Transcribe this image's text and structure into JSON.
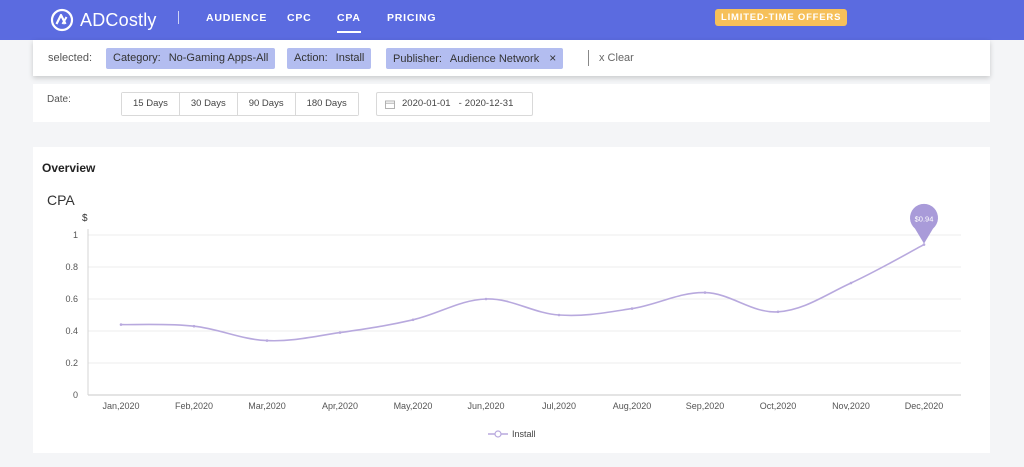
{
  "brand": {
    "name": "ADCostly"
  },
  "nav": [
    {
      "label": "AUDIENCE",
      "active": false
    },
    {
      "label": "CPC",
      "active": false
    },
    {
      "label": "CPA",
      "active": true
    },
    {
      "label": "PRICING",
      "active": false
    }
  ],
  "offer_label": "LIMITED-TIME OFFERS",
  "filters": {
    "label": "selected:",
    "chips": [
      {
        "key": "Category:",
        "value": "No-Gaming Apps-All"
      },
      {
        "key": "Action:",
        "value": "Install"
      },
      {
        "key": "Publisher:",
        "value": "Audience Network",
        "close": "×"
      }
    ],
    "clear_label": "x Clear"
  },
  "date": {
    "label": "Date:",
    "ranges": [
      "15 Days",
      "30 Days",
      "90 Days",
      "180 Days"
    ],
    "start": "2020-01-01",
    "separator": "-",
    "end": "2020-12-31"
  },
  "overview": {
    "title": "Overview"
  },
  "colors": {
    "accent": "#5b6be0",
    "line": "#b8a9de",
    "offer": "#f6c05a",
    "chip": "#b3bdf0"
  },
  "chart_data": {
    "type": "line",
    "title": "CPA",
    "ylabel": "$",
    "categories": [
      "Jan,2020",
      "Feb,2020",
      "Mar,2020",
      "Apr,2020",
      "May,2020",
      "Jun,2020",
      "Jul,2020",
      "Aug,2020",
      "Sep,2020",
      "Oct,2020",
      "Nov,2020",
      "Dec,2020"
    ],
    "series": [
      {
        "name": "Install",
        "values": [
          0.44,
          0.43,
          0.34,
          0.39,
          0.47,
          0.6,
          0.5,
          0.54,
          0.64,
          0.52,
          0.7,
          0.94
        ]
      }
    ],
    "ylim": [
      0,
      1
    ],
    "yticks": [
      "0",
      "0.2",
      "0.4",
      "0.6",
      "0.8",
      "1"
    ],
    "grid": true,
    "legend": "bottom",
    "annotation": {
      "label": "$0.94",
      "category": "Dec,2020"
    }
  }
}
